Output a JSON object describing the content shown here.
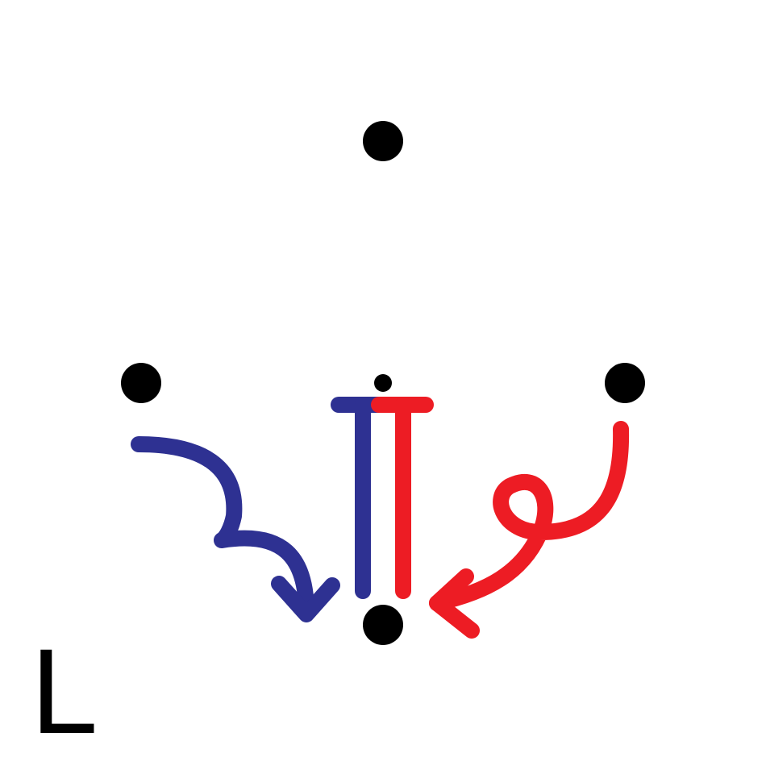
{
  "label": "L",
  "colors": {
    "background": "#ffffff",
    "dot": "#000000",
    "blue": "#2e3192",
    "red": "#ed1c24",
    "text": "#000000"
  },
  "elements": {
    "dots": [
      "top-dot",
      "left-dot",
      "right-dot",
      "bottom-dot",
      "center-small-dot"
    ],
    "arrows": [
      "blue-curved-arrow",
      "red-loop-arrow"
    ],
    "bars": [
      "blue-t-bar",
      "red-t-bar"
    ]
  }
}
